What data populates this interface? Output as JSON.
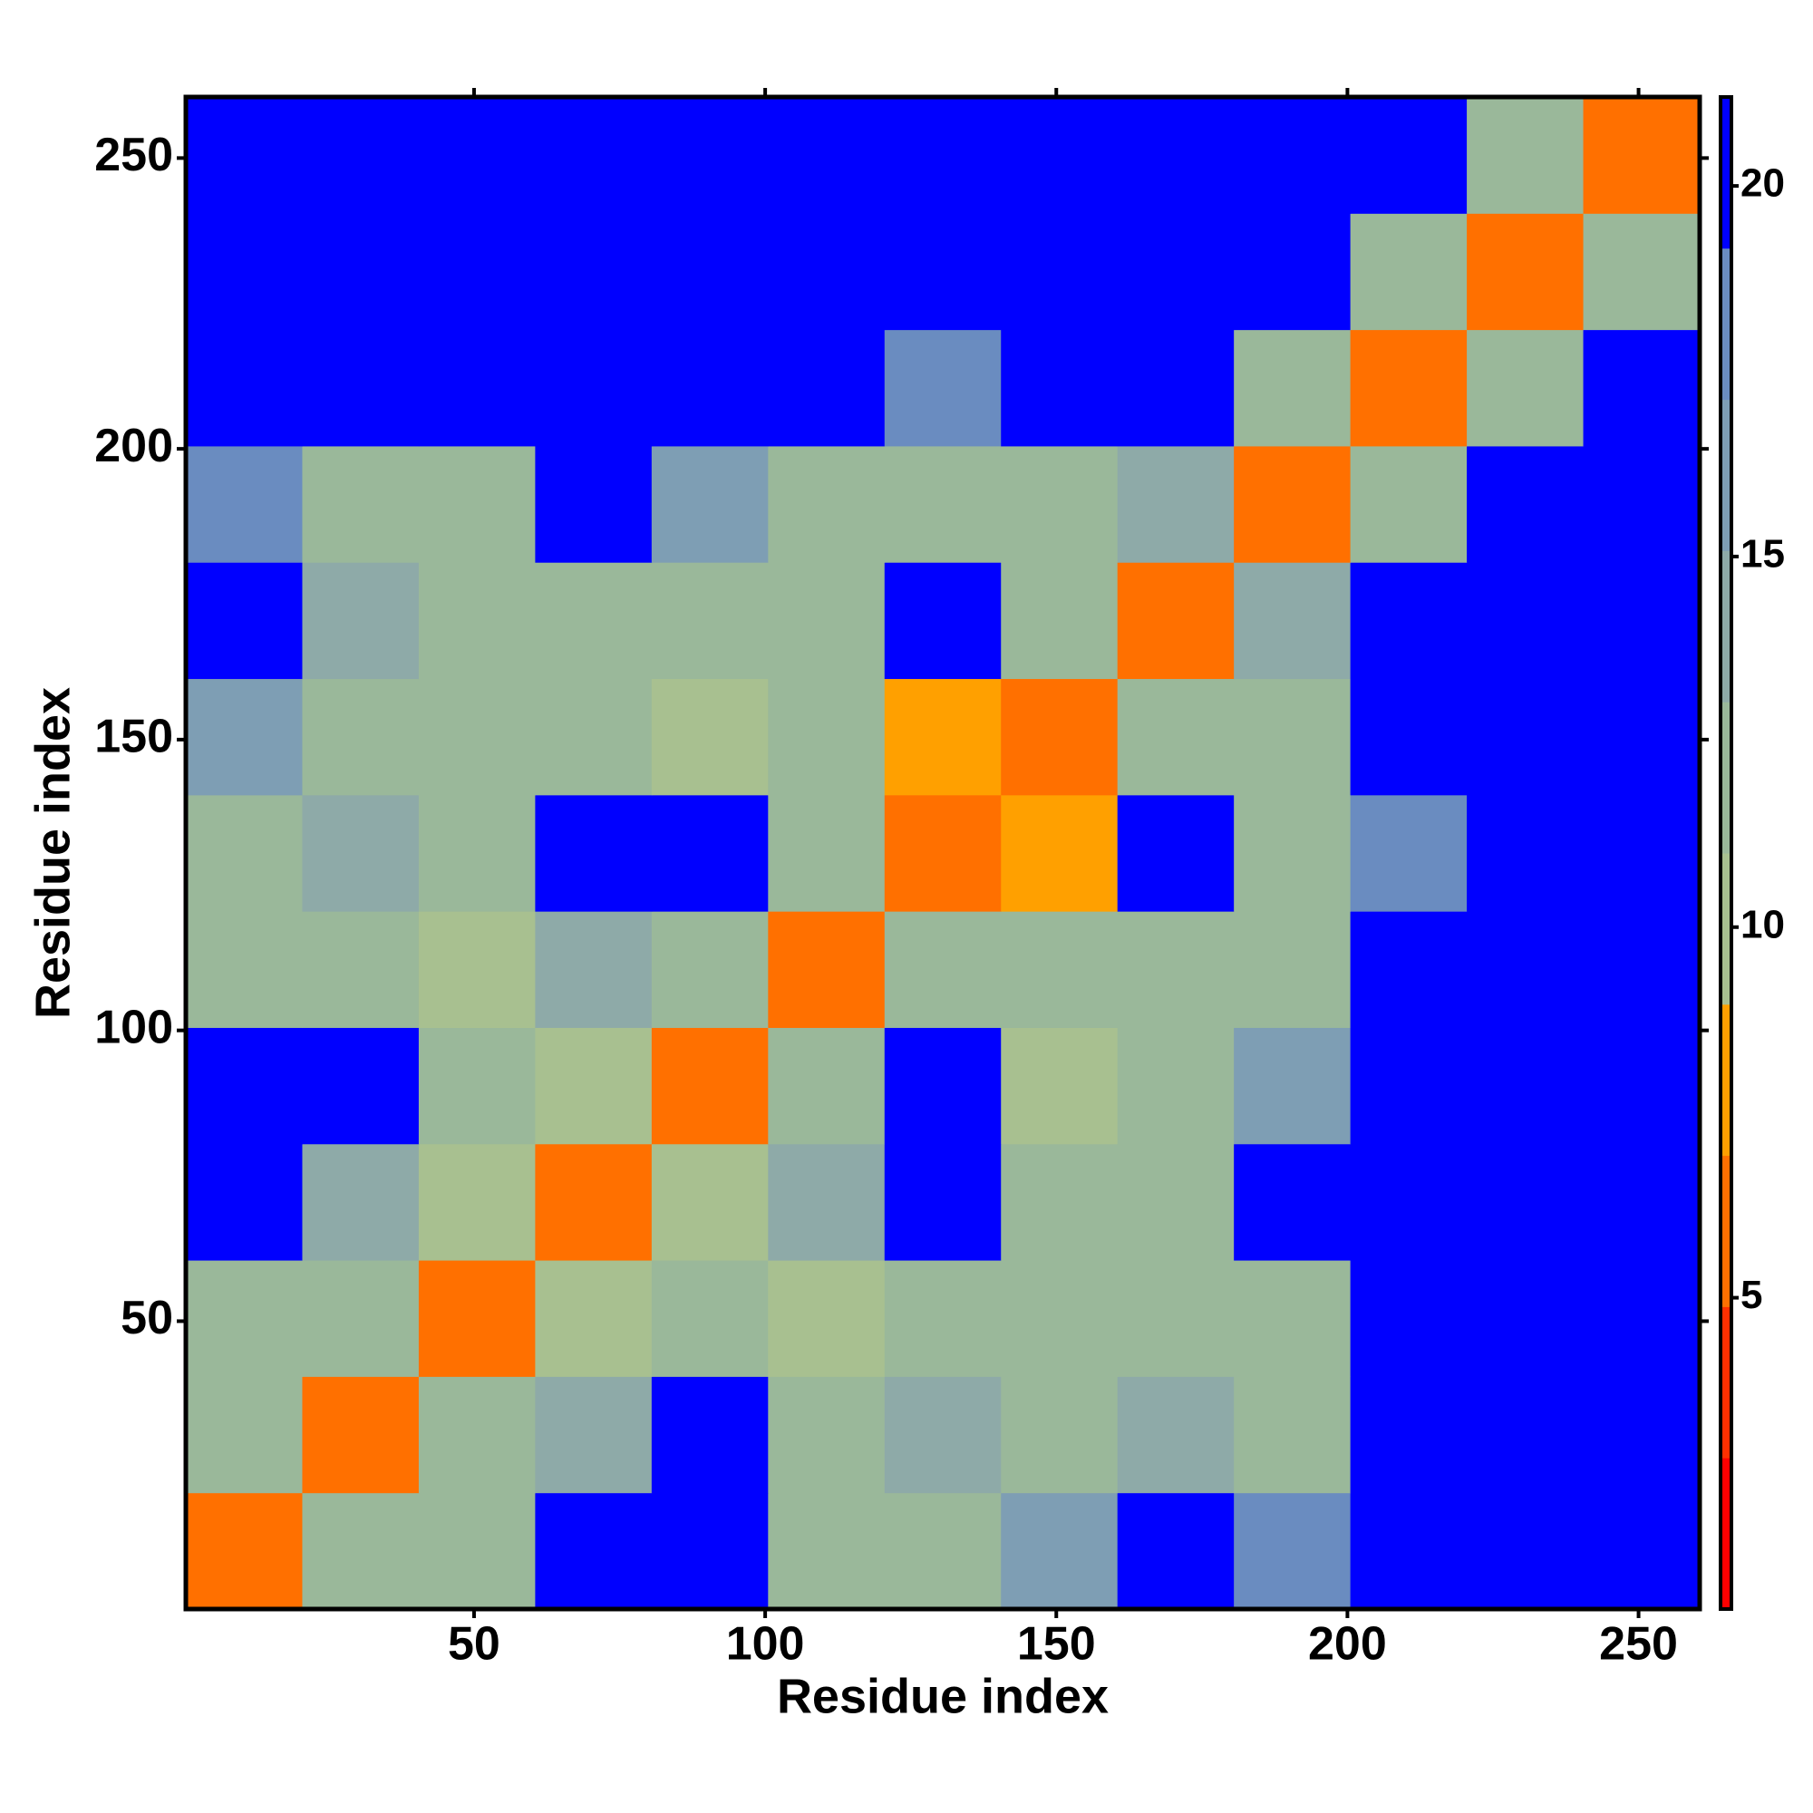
{
  "chart_data": {
    "type": "heatmap",
    "x_label": "Residue index",
    "y_label": "Residue index",
    "x_bins": [
      0.5,
      20.5,
      40.5,
      60.5,
      80.5,
      100.5,
      120.5,
      140.5,
      160.5,
      180.5,
      200.5,
      220.5,
      240.5,
      260.5
    ],
    "y_bins": [
      0.5,
      20.5,
      40.5,
      60.5,
      80.5,
      100.5,
      120.5,
      140.5,
      160.5,
      180.5,
      200.5,
      220.5,
      240.5,
      260.5
    ],
    "z": [
      [
        5,
        12,
        12,
        21,
        21,
        12,
        13,
        16,
        21,
        18,
        21,
        21,
        21
      ],
      [
        12,
        5,
        11,
        15,
        21,
        12,
        14,
        13,
        15,
        12,
        21,
        21,
        21
      ],
      [
        12,
        11,
        5,
        10,
        11,
        9,
        13,
        11,
        11,
        12,
        21,
        21,
        21
      ],
      [
        21,
        15,
        10,
        5,
        9,
        14,
        21,
        13,
        13,
        21,
        21,
        21,
        21
      ],
      [
        21,
        21,
        11,
        9,
        5,
        12,
        21,
        9,
        11,
        17,
        21,
        21,
        21
      ],
      [
        12,
        12,
        9,
        14,
        12,
        5,
        11,
        12,
        12,
        11,
        21,
        21,
        21
      ],
      [
        13,
        14,
        13,
        21,
        21,
        11,
        5,
        8,
        21,
        11,
        18,
        21,
        21
      ],
      [
        16,
        13,
        11,
        13,
        9,
        12,
        8,
        5,
        11,
        12,
        21,
        21,
        21
      ],
      [
        21,
        15,
        11,
        13,
        11,
        12,
        21,
        11,
        5,
        14,
        21,
        21,
        21
      ],
      [
        18,
        12,
        12,
        21,
        17,
        11,
        11,
        12,
        14,
        5,
        13,
        21,
        21
      ],
      [
        21,
        21,
        21,
        21,
        21,
        21,
        18,
        21,
        21,
        13,
        5,
        12,
        21
      ],
      [
        21,
        21,
        21,
        21,
        21,
        21,
        21,
        21,
        21,
        21,
        12,
        5,
        12
      ],
      [
        21,
        21,
        21,
        21,
        21,
        21,
        21,
        21,
        21,
        21,
        21,
        12,
        5
      ]
    ],
    "xlim": [
      0.5,
      260.5
    ],
    "ylim": [
      0.5,
      260.5
    ],
    "xticks": [
      50,
      100,
      150,
      200,
      250
    ],
    "yticks": [
      50,
      100,
      150,
      200,
      250
    ],
    "clim": [
      0.8,
      21.2
    ],
    "cticks": [
      5,
      10,
      15,
      20
    ],
    "colormap": [
      "#ff0000",
      "#ff3000",
      "#ff7000",
      "#ffa000",
      "#a8c090",
      "#9ab89a",
      "#8eaaa8",
      "#7e9eb4",
      "#6a8cc0",
      "#0000ff"
    ]
  }
}
